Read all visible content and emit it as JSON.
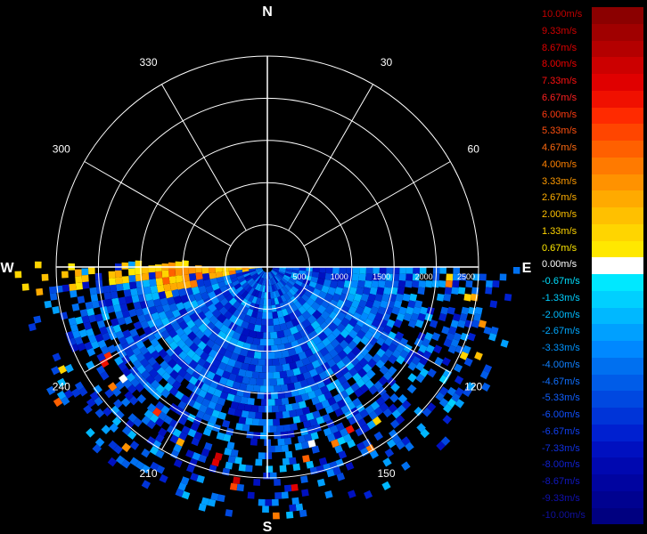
{
  "chart_data": {
    "type": "polar-ppi-radar",
    "compass": {
      "north": "N",
      "east": "E",
      "south": "S",
      "west": "W"
    },
    "azimuth_labels": [
      "30",
      "60",
      "120",
      "150",
      "210",
      "240",
      "300",
      "330"
    ],
    "range_labels": [
      "500",
      "1000",
      "1500",
      "2000",
      "2500"
    ],
    "range_max": 2500,
    "range_ring_step": 500,
    "spoke_step_deg": 30,
    "data_sector_deg": [
      90,
      270
    ],
    "grid": true,
    "legend_position": "right",
    "colorscale": [
      {
        "label": "10.00m/s",
        "value": 10.0,
        "color": "#8b0000",
        "text_color": "#c00000"
      },
      {
        "label": "9.33m/s",
        "value": 9.33,
        "color": "#a00000",
        "text_color": "#d00000"
      },
      {
        "label": "8.67m/s",
        "value": 8.67,
        "color": "#b40000",
        "text_color": "#e00000"
      },
      {
        "label": "8.00m/s",
        "value": 8.0,
        "color": "#cc0000",
        "text_color": "#ee0000"
      },
      {
        "label": "7.33m/s",
        "value": 7.33,
        "color": "#e00000",
        "text_color": "#ff1010"
      },
      {
        "label": "6.67m/s",
        "value": 6.67,
        "color": "#f01000",
        "text_color": "#ff2020"
      },
      {
        "label": "6.00m/s",
        "value": 6.0,
        "color": "#ff2a00",
        "text_color": "#ff3a10"
      },
      {
        "label": "5.33m/s",
        "value": 5.33,
        "color": "#ff4500",
        "text_color": "#ff5010"
      },
      {
        "label": "4.67m/s",
        "value": 4.67,
        "color": "#ff6000",
        "text_color": "#ff6a10"
      },
      {
        "label": "4.00m/s",
        "value": 4.0,
        "color": "#ff7a00",
        "text_color": "#ff8000"
      },
      {
        "label": "3.33m/s",
        "value": 3.33,
        "color": "#ff9200",
        "text_color": "#ff9a00"
      },
      {
        "label": "2.67m/s",
        "value": 2.67,
        "color": "#ffaa00",
        "text_color": "#ffae00"
      },
      {
        "label": "2.00m/s",
        "value": 2.0,
        "color": "#ffc000",
        "text_color": "#ffc000"
      },
      {
        "label": "1.33m/s",
        "value": 1.33,
        "color": "#ffd500",
        "text_color": "#ffd400"
      },
      {
        "label": "0.67m/s",
        "value": 0.67,
        "color": "#ffe800",
        "text_color": "#ffe800"
      },
      {
        "label": "0.00m/s",
        "value": 0.0,
        "color": "#ffffff",
        "text_color": "#ffffff"
      },
      {
        "label": "-0.67m/s",
        "value": -0.67,
        "color": "#00e8ff",
        "text_color": "#00e0ff"
      },
      {
        "label": "-1.33m/s",
        "value": -1.33,
        "color": "#00d0ff",
        "text_color": "#00cfff"
      },
      {
        "label": "-2.00m/s",
        "value": -2.0,
        "color": "#00b8ff",
        "text_color": "#00bbff"
      },
      {
        "label": "-2.67m/s",
        "value": -2.67,
        "color": "#00a0ff",
        "text_color": "#00a8ff"
      },
      {
        "label": "-3.33m/s",
        "value": -3.33,
        "color": "#0088ff",
        "text_color": "#0094ff"
      },
      {
        "label": "-4.00m/s",
        "value": -4.0,
        "color": "#0070f0",
        "text_color": "#1080ff"
      },
      {
        "label": "-4.67m/s",
        "value": -4.67,
        "color": "#005ce8",
        "text_color": "#1070ff"
      },
      {
        "label": "-5.33m/s",
        "value": -5.33,
        "color": "#0048e0",
        "text_color": "#1060ff"
      },
      {
        "label": "-6.00m/s",
        "value": -6.0,
        "color": "#0034d8",
        "text_color": "#1050ff"
      },
      {
        "label": "-6.67m/s",
        "value": -6.67,
        "color": "#0020d0",
        "text_color": "#1040f0"
      },
      {
        "label": "-7.33m/s",
        "value": -7.33,
        "color": "#0010c0",
        "text_color": "#1030e0"
      },
      {
        "label": "-8.00m/s",
        "value": -8.0,
        "color": "#0008b0",
        "text_color": "#1020d0"
      },
      {
        "label": "-8.67m/s",
        "value": -8.67,
        "color": "#0004a0",
        "text_color": "#1018c0"
      },
      {
        "label": "-9.33m/s",
        "value": -9.33,
        "color": "#000290",
        "text_color": "#1010b0"
      },
      {
        "label": "-10.00m/s",
        "value": -10.0,
        "color": "#000080",
        "text_color": "#1010a0"
      }
    ]
  }
}
